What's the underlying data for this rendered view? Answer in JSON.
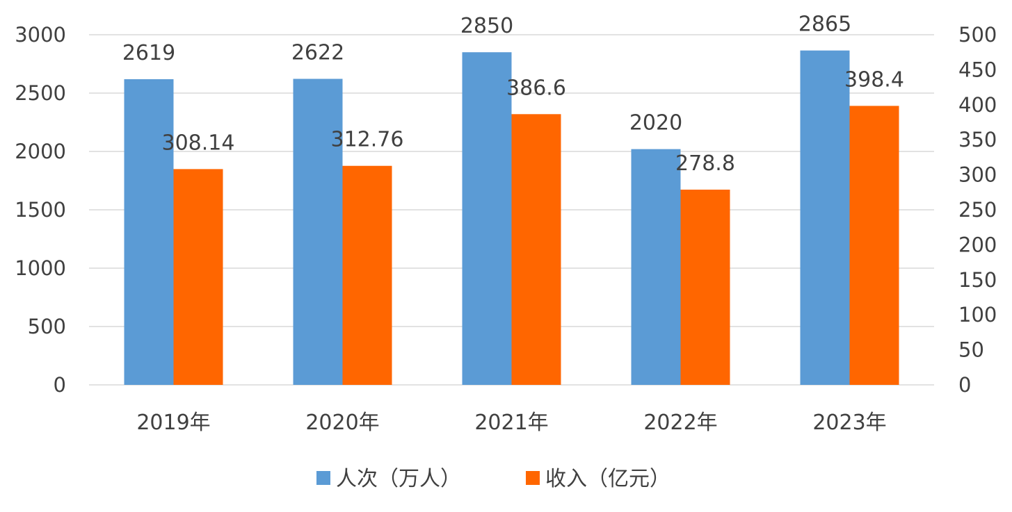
{
  "chart_data": {
    "type": "bar",
    "categories": [
      "2019年",
      "2020年",
      "2021年",
      "2022年",
      "2023年"
    ],
    "series": [
      {
        "name": "人次（万人）",
        "axis": "left",
        "color": "#5b9bd5",
        "values": [
          2619,
          2622,
          2850,
          2020,
          2865
        ],
        "labels": [
          "2619",
          "2622",
          "2850",
          "2020",
          "2865"
        ]
      },
      {
        "name": "收入（亿元）",
        "axis": "right",
        "color": "#ff6600",
        "values": [
          308.14,
          312.76,
          386.6,
          278.8,
          398.4
        ],
        "labels": [
          "308.14",
          "312.76",
          "386.6",
          "278.8",
          "398.4"
        ]
      }
    ],
    "y_left": {
      "min": 0,
      "max": 3000,
      "ticks": [
        "0",
        "500",
        "1000",
        "1500",
        "2000",
        "2500",
        "3000"
      ]
    },
    "y_right": {
      "min": 0,
      "max": 500,
      "ticks": [
        "0",
        "50",
        "100",
        "150",
        "200",
        "250",
        "300",
        "350",
        "400",
        "450",
        "500"
      ]
    },
    "grid": true,
    "legend_position": "bottom"
  }
}
